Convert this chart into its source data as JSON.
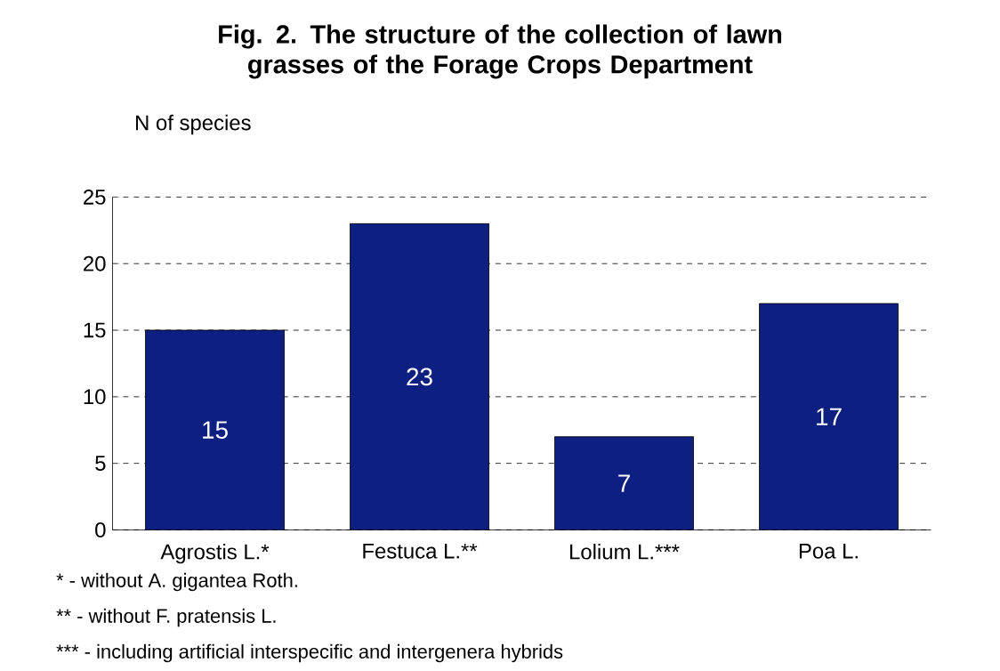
{
  "chart_data": {
    "type": "bar",
    "title": "Fig. 2. The structure of the collection of lawn grasses of the Forage Crops Department",
    "ylabel": "N of species",
    "categories": [
      "Agrostis L.*",
      "Festuca L.**",
      "Lolium L.***",
      "Poa L."
    ],
    "values": [
      15,
      23,
      7,
      17
    ],
    "color": "#0d1f80",
    "ylim": [
      0,
      25
    ],
    "yticks": [
      0,
      5,
      10,
      15,
      20,
      25
    ],
    "grid": "y",
    "data_labels": true,
    "annotations": [
      "* - without A. gigantea Roth.",
      "** - without F. pratensis L.",
      "*** - including artificial interspecific and intergenera hybrids"
    ]
  }
}
